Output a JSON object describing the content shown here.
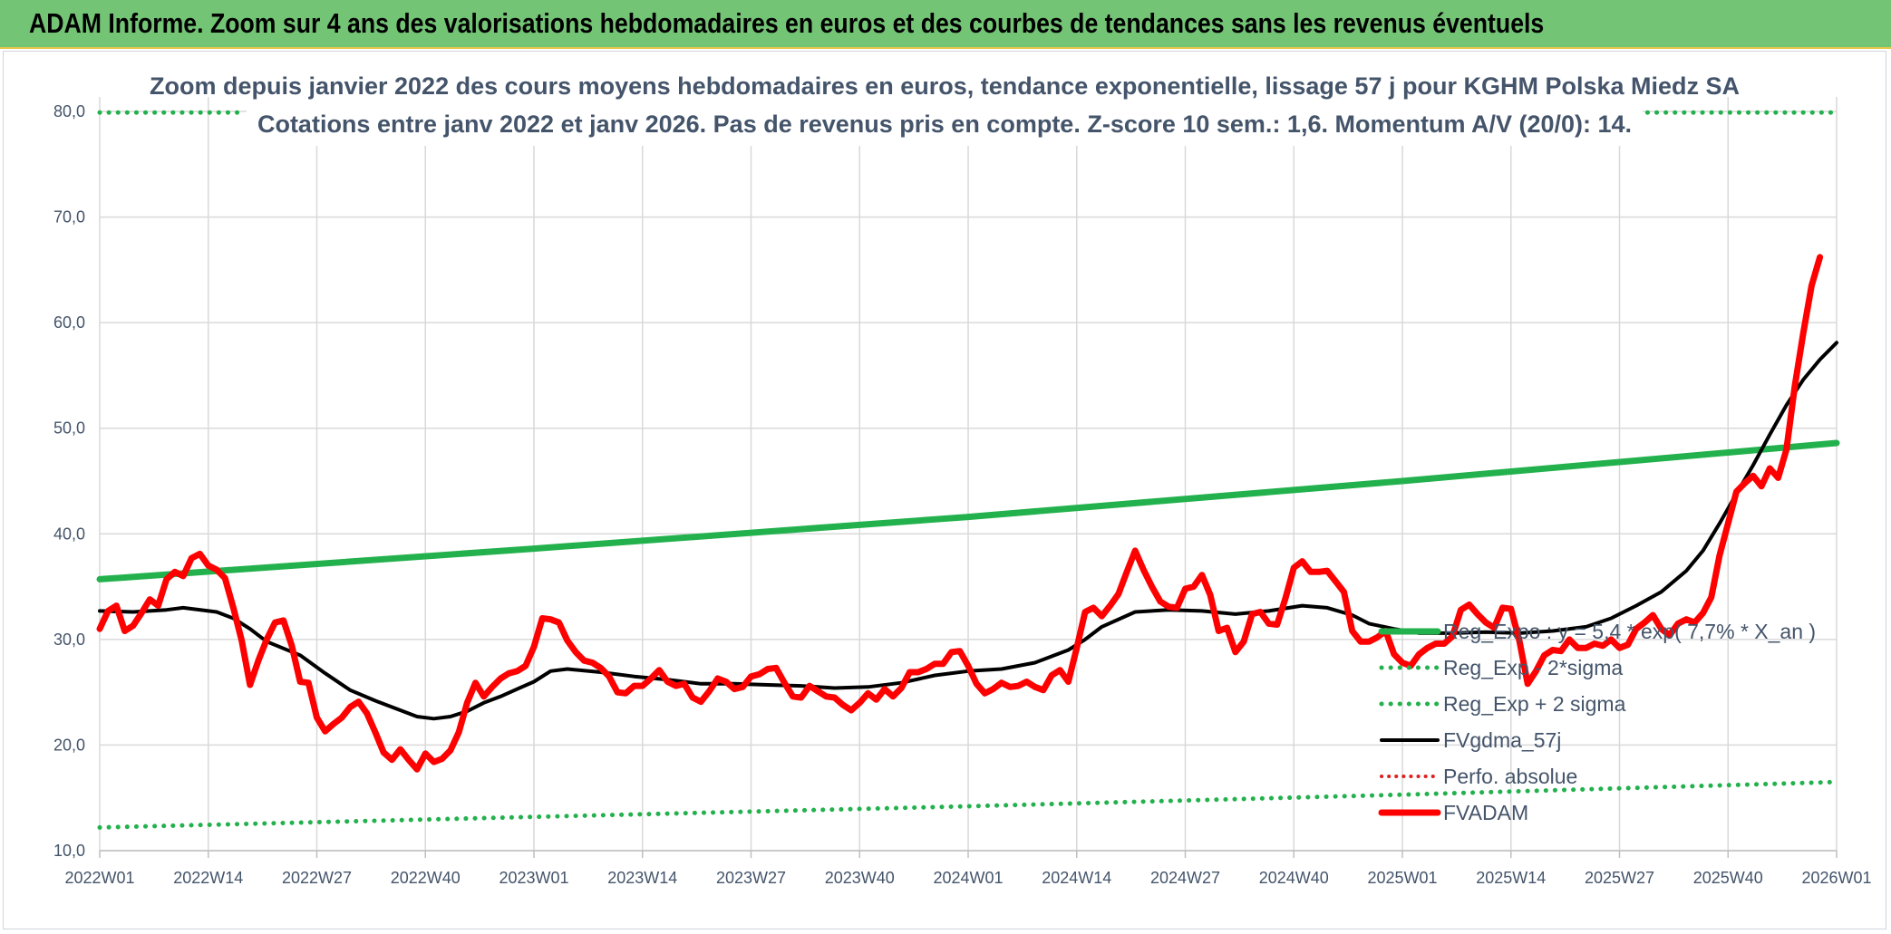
{
  "banner": {
    "title": "ADAM Informe. Zoom sur 4 ans des valorisations hebdomadaires en euros et des courbes de tendances sans les revenus éventuels"
  },
  "chart_data": {
    "type": "line",
    "title": "Zoom depuis janvier 2022 des cours moyens hebdomadaires en euros, tendance exponentielle, lissage 57 j pour KGHM Polska Miedz SA",
    "subtitle": "Cotations entre janv 2022 et janv 2026. Pas de revenus pris en compte. Z-score 10 sem.: 1,6. Momentum A/V (20/0): 14.",
    "xlabel": "",
    "ylabel": "",
    "ylim": [
      10,
      80
    ],
    "y_ticks": [
      "10,0",
      "20,0",
      "30,0",
      "40,0",
      "50,0",
      "60,0",
      "70,0",
      "80,0"
    ],
    "x_range": [
      0,
      208
    ],
    "x_ticks": [
      {
        "x": 0,
        "label": "2022W01"
      },
      {
        "x": 13,
        "label": "2022W14"
      },
      {
        "x": 26,
        "label": "2022W27"
      },
      {
        "x": 39,
        "label": "2022W40"
      },
      {
        "x": 52,
        "label": "2023W01"
      },
      {
        "x": 65,
        "label": "2023W14"
      },
      {
        "x": 78,
        "label": "2023W27"
      },
      {
        "x": 91,
        "label": "2023W40"
      },
      {
        "x": 104,
        "label": "2024W01"
      },
      {
        "x": 117,
        "label": "2024W14"
      },
      {
        "x": 130,
        "label": "2024W27"
      },
      {
        "x": 143,
        "label": "2024W40"
      },
      {
        "x": 156,
        "label": "2025W01"
      },
      {
        "x": 169,
        "label": "2025W14"
      },
      {
        "x": 182,
        "label": "2025W27"
      },
      {
        "x": 195,
        "label": "2025W40"
      },
      {
        "x": 208,
        "label": "2026W01"
      }
    ],
    "grid": true,
    "legend_position": "right",
    "series": [
      {
        "name": "Reg_Expo : y = 5,4 * exp( 7,7% * X_an )",
        "color": "#22b14c",
        "style": "solid",
        "width": 7,
        "points": [
          [
            0,
            35.7
          ],
          [
            52,
            38.6
          ],
          [
            104,
            41.6
          ],
          [
            156,
            45.0
          ],
          [
            208,
            48.6
          ]
        ]
      },
      {
        "name": "Reg_Exp - 2*sigma",
        "color": "#22b14c",
        "style": "dotted",
        "width": 5,
        "points": [
          [
            0,
            12.2
          ],
          [
            52,
            13.2
          ],
          [
            104,
            14.2
          ],
          [
            156,
            15.3
          ],
          [
            208,
            16.5
          ]
        ]
      },
      {
        "name": "Reg_Exp + 2 sigma",
        "color": "#22b14c",
        "style": "dotted",
        "width": 5,
        "points": [
          [
            0,
            79.9
          ],
          [
            17,
            79.9
          ]
        ]
      },
      {
        "name": "FVgdma_57j",
        "color": "#000000",
        "style": "solid",
        "width": 4,
        "points": [
          [
            0,
            32.7
          ],
          [
            4,
            32.6
          ],
          [
            8,
            32.8
          ],
          [
            10,
            33.0
          ],
          [
            14,
            32.6
          ],
          [
            16,
            32.0
          ],
          [
            18,
            31.0
          ],
          [
            20,
            29.8
          ],
          [
            24,
            28.5
          ],
          [
            27,
            26.8
          ],
          [
            30,
            25.2
          ],
          [
            33,
            24.2
          ],
          [
            36,
            23.3
          ],
          [
            38,
            22.7
          ],
          [
            40,
            22.5
          ],
          [
            42,
            22.7
          ],
          [
            44,
            23.2
          ],
          [
            46,
            24.0
          ],
          [
            48,
            24.6
          ],
          [
            50,
            25.3
          ],
          [
            52,
            26.0
          ],
          [
            54,
            27.0
          ],
          [
            56,
            27.2
          ],
          [
            60,
            26.9
          ],
          [
            64,
            26.5
          ],
          [
            68,
            26.2
          ],
          [
            72,
            25.8
          ],
          [
            76,
            25.8
          ],
          [
            80,
            25.7
          ],
          [
            84,
            25.6
          ],
          [
            88,
            25.4
          ],
          [
            92,
            25.5
          ],
          [
            96,
            25.9
          ],
          [
            100,
            26.6
          ],
          [
            104,
            27.0
          ],
          [
            108,
            27.2
          ],
          [
            112,
            27.8
          ],
          [
            114,
            28.4
          ],
          [
            116,
            29.0
          ],
          [
            118,
            30.0
          ],
          [
            120,
            31.2
          ],
          [
            124,
            32.6
          ],
          [
            128,
            32.8
          ],
          [
            132,
            32.7
          ],
          [
            136,
            32.4
          ],
          [
            140,
            32.7
          ],
          [
            144,
            33.2
          ],
          [
            147,
            33.0
          ],
          [
            150,
            32.3
          ],
          [
            152,
            31.5
          ],
          [
            155,
            31.0
          ],
          [
            158,
            30.6
          ],
          [
            162,
            30.6
          ],
          [
            166,
            30.7
          ],
          [
            170,
            30.6
          ],
          [
            174,
            30.8
          ],
          [
            178,
            31.2
          ],
          [
            181,
            32.0
          ],
          [
            184,
            33.2
          ],
          [
            187,
            34.5
          ],
          [
            190,
            36.5
          ],
          [
            192,
            38.4
          ],
          [
            194,
            41.0
          ],
          [
            196,
            43.8
          ],
          [
            198,
            46.5
          ],
          [
            200,
            49.4
          ],
          [
            202,
            52.2
          ],
          [
            204,
            54.6
          ],
          [
            206,
            56.5
          ],
          [
            208,
            58.1
          ]
        ]
      },
      {
        "name": "Perfo. absolue",
        "color": "#e02020",
        "style": "dotted",
        "width": 4,
        "points": []
      },
      {
        "name": "FVADAM",
        "color": "#ff0000",
        "style": "solid",
        "width": 7,
        "points": [
          [
            0,
            31.0
          ],
          [
            1,
            32.7
          ],
          [
            2,
            33.2
          ],
          [
            3,
            30.8
          ],
          [
            4,
            31.3
          ],
          [
            5,
            32.5
          ],
          [
            6,
            33.8
          ],
          [
            7,
            33.2
          ],
          [
            8,
            35.7
          ],
          [
            9,
            36.4
          ],
          [
            10,
            36.0
          ],
          [
            11,
            37.7
          ],
          [
            12,
            38.1
          ],
          [
            13,
            37.0
          ],
          [
            14,
            36.6
          ],
          [
            15,
            35.8
          ],
          [
            16,
            33.0
          ],
          [
            17,
            29.9
          ],
          [
            18,
            25.7
          ],
          [
            19,
            28.0
          ],
          [
            20,
            30.0
          ],
          [
            21,
            31.6
          ],
          [
            22,
            31.8
          ],
          [
            23,
            29.4
          ],
          [
            24,
            26.0
          ],
          [
            25,
            25.9
          ],
          [
            26,
            22.6
          ],
          [
            27,
            21.3
          ],
          [
            28,
            22.0
          ],
          [
            29,
            22.6
          ],
          [
            30,
            23.6
          ],
          [
            31,
            24.1
          ],
          [
            32,
            23.0
          ],
          [
            33,
            21.2
          ],
          [
            34,
            19.3
          ],
          [
            35,
            18.6
          ],
          [
            36,
            19.6
          ],
          [
            37,
            18.6
          ],
          [
            38,
            17.7
          ],
          [
            39,
            19.2
          ],
          [
            40,
            18.4
          ],
          [
            41,
            18.7
          ],
          [
            42,
            19.5
          ],
          [
            43,
            21.2
          ],
          [
            44,
            24.0
          ],
          [
            45,
            25.9
          ],
          [
            46,
            24.6
          ],
          [
            47,
            25.5
          ],
          [
            48,
            26.3
          ],
          [
            49,
            26.8
          ],
          [
            50,
            27.0
          ],
          [
            51,
            27.5
          ],
          [
            52,
            29.3
          ],
          [
            53,
            32.0
          ],
          [
            54,
            31.9
          ],
          [
            55,
            31.6
          ],
          [
            56,
            29.9
          ],
          [
            57,
            28.8
          ],
          [
            58,
            28.0
          ],
          [
            59,
            27.8
          ],
          [
            60,
            27.3
          ],
          [
            61,
            26.5
          ],
          [
            62,
            25.0
          ],
          [
            63,
            24.9
          ],
          [
            64,
            25.6
          ],
          [
            65,
            25.6
          ],
          [
            66,
            26.3
          ],
          [
            67,
            27.1
          ],
          [
            68,
            26.0
          ],
          [
            69,
            25.6
          ],
          [
            70,
            25.8
          ],
          [
            71,
            24.5
          ],
          [
            72,
            24.1
          ],
          [
            73,
            25.1
          ],
          [
            74,
            26.3
          ],
          [
            75,
            26.0
          ],
          [
            76,
            25.3
          ],
          [
            77,
            25.5
          ],
          [
            78,
            26.5
          ],
          [
            79,
            26.7
          ],
          [
            80,
            27.2
          ],
          [
            81,
            27.3
          ],
          [
            82,
            25.9
          ],
          [
            83,
            24.6
          ],
          [
            84,
            24.5
          ],
          [
            85,
            25.6
          ],
          [
            86,
            25.1
          ],
          [
            87,
            24.6
          ],
          [
            88,
            24.5
          ],
          [
            89,
            23.8
          ],
          [
            90,
            23.3
          ],
          [
            91,
            24.0
          ],
          [
            92,
            24.9
          ],
          [
            93,
            24.3
          ],
          [
            94,
            25.3
          ],
          [
            95,
            24.6
          ],
          [
            96,
            25.4
          ],
          [
            97,
            26.9
          ],
          [
            98,
            26.9
          ],
          [
            99,
            27.2
          ],
          [
            100,
            27.7
          ],
          [
            101,
            27.7
          ],
          [
            102,
            28.8
          ],
          [
            103,
            28.9
          ],
          [
            104,
            27.5
          ],
          [
            105,
            25.8
          ],
          [
            106,
            24.9
          ],
          [
            107,
            25.3
          ],
          [
            108,
            25.9
          ],
          [
            109,
            25.5
          ],
          [
            110,
            25.6
          ],
          [
            111,
            26.0
          ],
          [
            112,
            25.5
          ],
          [
            113,
            25.2
          ],
          [
            114,
            26.6
          ],
          [
            115,
            27.1
          ],
          [
            116,
            26.0
          ],
          [
            117,
            29.2
          ],
          [
            118,
            32.6
          ],
          [
            119,
            33.0
          ],
          [
            120,
            32.2
          ],
          [
            121,
            33.2
          ],
          [
            122,
            34.3
          ],
          [
            123,
            36.4
          ],
          [
            124,
            38.4
          ],
          [
            125,
            36.6
          ],
          [
            126,
            35.0
          ],
          [
            127,
            33.6
          ],
          [
            128,
            33.1
          ],
          [
            129,
            33.0
          ],
          [
            130,
            34.8
          ],
          [
            131,
            35.0
          ],
          [
            132,
            36.1
          ],
          [
            133,
            34.2
          ],
          [
            134,
            30.8
          ],
          [
            135,
            31.1
          ],
          [
            136,
            28.8
          ],
          [
            137,
            29.8
          ],
          [
            138,
            32.4
          ],
          [
            139,
            32.6
          ],
          [
            140,
            31.5
          ],
          [
            141,
            31.4
          ],
          [
            142,
            33.9
          ],
          [
            143,
            36.8
          ],
          [
            144,
            37.4
          ],
          [
            145,
            36.4
          ],
          [
            146,
            36.4
          ],
          [
            147,
            36.5
          ],
          [
            148,
            35.5
          ],
          [
            149,
            34.5
          ],
          [
            150,
            30.8
          ],
          [
            151,
            29.8
          ],
          [
            152,
            29.8
          ],
          [
            153,
            30.2
          ],
          [
            154,
            30.8
          ],
          [
            155,
            28.6
          ],
          [
            156,
            27.8
          ],
          [
            157,
            27.5
          ],
          [
            158,
            28.6
          ],
          [
            159,
            29.2
          ],
          [
            160,
            29.6
          ],
          [
            161,
            29.6
          ],
          [
            162,
            30.3
          ],
          [
            163,
            32.8
          ],
          [
            164,
            33.3
          ],
          [
            165,
            32.4
          ],
          [
            166,
            31.6
          ],
          [
            167,
            31.1
          ],
          [
            168,
            33.0
          ],
          [
            169,
            32.9
          ],
          [
            170,
            29.9
          ],
          [
            171,
            25.8
          ],
          [
            172,
            27.0
          ],
          [
            173,
            28.5
          ],
          [
            174,
            29.0
          ],
          [
            175,
            28.9
          ],
          [
            176,
            30.0
          ],
          [
            177,
            29.2
          ],
          [
            178,
            29.2
          ],
          [
            179,
            29.6
          ],
          [
            180,
            29.4
          ],
          [
            181,
            30.0
          ],
          [
            182,
            29.2
          ],
          [
            183,
            29.5
          ],
          [
            184,
            31.0
          ],
          [
            185,
            31.6
          ],
          [
            186,
            32.3
          ],
          [
            187,
            31.0
          ],
          [
            188,
            30.4
          ],
          [
            189,
            31.5
          ],
          [
            190,
            31.9
          ],
          [
            191,
            31.6
          ],
          [
            192,
            32.5
          ],
          [
            193,
            34.0
          ],
          [
            194,
            38.0
          ],
          [
            195,
            41.0
          ],
          [
            196,
            44.0
          ],
          [
            197,
            44.8
          ],
          [
            198,
            45.5
          ],
          [
            199,
            44.5
          ],
          [
            200,
            46.2
          ],
          [
            201,
            45.3
          ],
          [
            202,
            48.0
          ],
          [
            203,
            54.0
          ],
          [
            204,
            59.0
          ],
          [
            205,
            63.5
          ],
          [
            206,
            66.2
          ]
        ]
      }
    ]
  }
}
